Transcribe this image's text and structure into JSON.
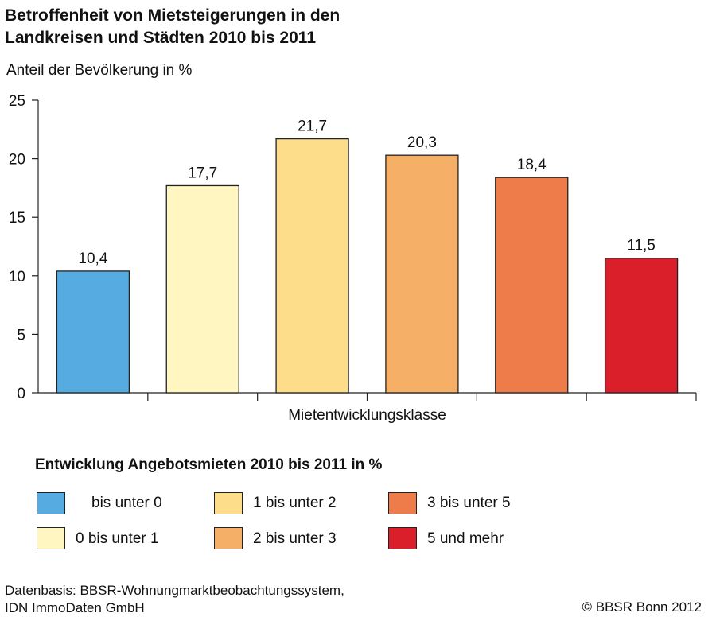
{
  "title_line1": "Betroffenheit von Mietsteigerungen in den",
  "title_line2": "Landkreisen und Städten 2010 bis 2011",
  "chart_data": {
    "type": "bar",
    "ylabel": "Anteil der Bevölkerung in %",
    "xlabel": "Mietentwicklungsklasse",
    "ylim": [
      0,
      25
    ],
    "yticks": [
      0,
      5,
      10,
      15,
      20,
      25
    ],
    "categories": [
      "bis unter 0",
      "0 bis unter 1",
      "1 bis unter 2",
      "2 bis unter 3",
      "3 bis unter 5",
      "5 und mehr"
    ],
    "values": [
      10.4,
      17.7,
      21.7,
      20.3,
      18.4,
      11.5
    ],
    "value_labels": [
      "10,4",
      "17,7",
      "21,7",
      "20,3",
      "18,4",
      "11,5"
    ],
    "colors": [
      "#56ACE0",
      "#FFF6C2",
      "#FDDC8A",
      "#F6AF67",
      "#EE7C4A",
      "#DB1F2A"
    ],
    "grid": false
  },
  "legend": {
    "title": "Entwicklung Angebotsmieten 2010 bis 2011 in %",
    "items": [
      {
        "label": "bis unter 0",
        "color": "#56ACE0"
      },
      {
        "label": "0 bis unter 1",
        "color": "#FFF6C2"
      },
      {
        "label": "1 bis unter 2",
        "color": "#FDDC8A"
      },
      {
        "label": "2 bis unter 3",
        "color": "#F6AF67"
      },
      {
        "label": "3 bis unter 5",
        "color": "#EE7C4A"
      },
      {
        "label": "5 und mehr",
        "color": "#DB1F2A"
      }
    ]
  },
  "source": {
    "line1": "Datenbasis: BBSR-Wohnungmarktbeobachtungssystem,",
    "line2": "IDN ImmoDaten GmbH"
  },
  "copyright": "© BBSR Bonn 2012"
}
